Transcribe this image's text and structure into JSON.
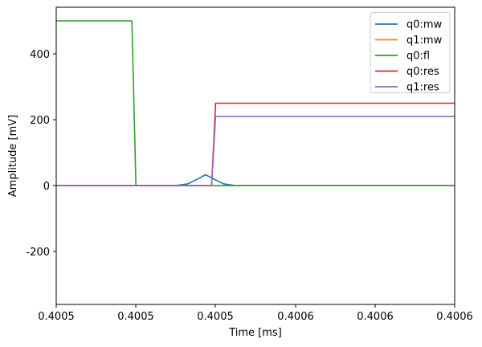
{
  "chart_data": {
    "type": "line",
    "title": "",
    "xlabel": "Time [ms]",
    "ylabel": "Amplitude [mV]",
    "xlim": [
      0.40048,
      0.40063
    ],
    "ylim": [
      -361,
      541
    ],
    "grid": false,
    "legend_position": "upper right",
    "x_ticks": [
      "0.4005",
      "0.4005",
      "0.4005",
      "0.4006",
      "0.4006",
      "0.4006"
    ],
    "y_ticks": [
      "400",
      "200",
      "0",
      "-200"
    ],
    "series": [
      {
        "name": "q0:mw",
        "color": "#1f77b4",
        "description": "Gaussian pulse, peak ~33 mV centered between 3rd and 4th x-tick; otherwise 0",
        "points": [
          [
            0.0,
            0
          ],
          [
            0.3,
            0
          ],
          [
            0.33,
            5
          ],
          [
            0.355,
            20
          ],
          [
            0.375,
            33
          ],
          [
            0.395,
            20
          ],
          [
            0.42,
            5
          ],
          [
            0.45,
            0
          ],
          [
            1.0,
            0
          ]
        ]
      },
      {
        "name": "q1:mw",
        "color": "#ff7f0e",
        "description": "Flat at 0 across the window",
        "points": [
          [
            0.0,
            0
          ],
          [
            1.0,
            0
          ]
        ]
      },
      {
        "name": "q0:fl",
        "color": "#2ca02c",
        "description": "500 mV until ~0.4005 (2nd tick), then drops to 0",
        "points": [
          [
            0.0,
            500
          ],
          [
            0.19,
            500
          ],
          [
            0.2,
            0
          ],
          [
            1.0,
            0
          ]
        ]
      },
      {
        "name": "q0:res",
        "color": "#d62728",
        "description": "0 until ~0.4005 (3rd tick), then rises to 250 mV",
        "points": [
          [
            0.0,
            0
          ],
          [
            0.39,
            0
          ],
          [
            0.4,
            250
          ],
          [
            1.0,
            250
          ]
        ]
      },
      {
        "name": "q1:res",
        "color": "#9467bd",
        "description": "0 until ~0.4005 (3rd tick), then rises to 210 mV",
        "points": [
          [
            0.0,
            0
          ],
          [
            0.39,
            0
          ],
          [
            0.4,
            210
          ],
          [
            1.0,
            210
          ]
        ]
      }
    ]
  },
  "axes": {
    "xlabel": "Time [ms]",
    "ylabel": "Amplitude [mV]",
    "x_ticks": [
      "0.4005",
      "0.4005",
      "0.4005",
      "0.4006",
      "0.4006",
      "0.4006"
    ],
    "y_ticks": [
      "400",
      "200",
      "0",
      "-200"
    ]
  },
  "legend": {
    "items": [
      {
        "label": "q0:mw",
        "color": "#1f77b4"
      },
      {
        "label": "q1:mw",
        "color": "#ff7f0e"
      },
      {
        "label": "q0:fl",
        "color": "#2ca02c"
      },
      {
        "label": "q0:res",
        "color": "#d62728"
      },
      {
        "label": "q1:res",
        "color": "#9467bd"
      }
    ]
  }
}
